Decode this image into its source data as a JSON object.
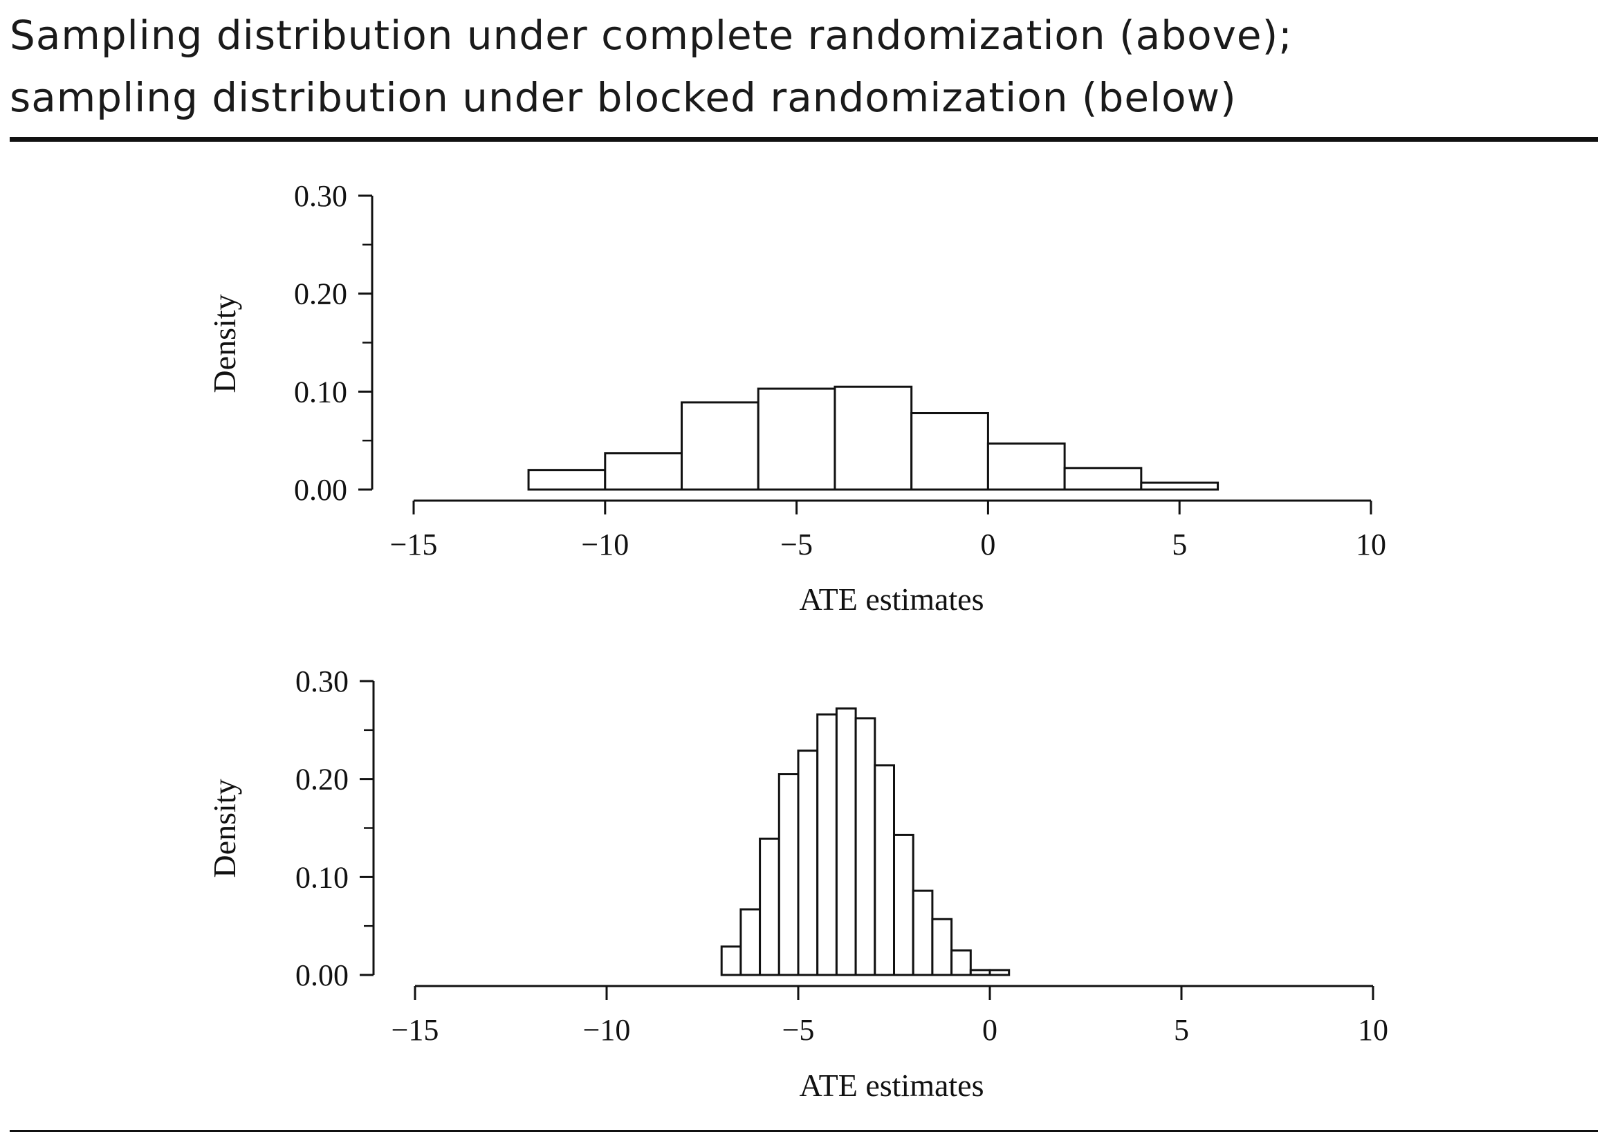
{
  "title_lines": [
    "Sampling distribution under complete randomization (above);",
    "sampling distribution under blocked randomization (below)"
  ],
  "chart_data": [
    {
      "type": "bar",
      "histogram": true,
      "xlabel": "ATE estimates",
      "ylabel": "Density",
      "xlim": [
        -15,
        10
      ],
      "ylim": [
        0,
        0.3
      ],
      "x_ticks": [
        -15,
        -10,
        -5,
        0,
        5,
        10
      ],
      "x_tick_labels": [
        "−15",
        "−10",
        "−5",
        "0",
        "5",
        "10"
      ],
      "y_ticks": [
        0.0,
        0.1,
        0.2,
        0.3
      ],
      "y_tick_labels": [
        "0.00",
        "0.10",
        "0.20",
        "0.30"
      ],
      "y_minor_ticks": [
        0.05,
        0.15,
        0.25
      ],
      "bins": [
        {
          "x0": -12,
          "x1": -10,
          "density": 0.02
        },
        {
          "x0": -10,
          "x1": -8,
          "density": 0.037
        },
        {
          "x0": -8,
          "x1": -6,
          "density": 0.089
        },
        {
          "x0": -6,
          "x1": -4,
          "density": 0.103
        },
        {
          "x0": -4,
          "x1": -2,
          "density": 0.105
        },
        {
          "x0": -2,
          "x1": 0,
          "density": 0.078
        },
        {
          "x0": 0,
          "x1": 2,
          "density": 0.047
        },
        {
          "x0": 2,
          "x1": 4,
          "density": 0.022
        },
        {
          "x0": 4,
          "x1": 6,
          "density": 0.007
        }
      ]
    },
    {
      "type": "bar",
      "histogram": true,
      "xlabel": "ATE estimates",
      "ylabel": "Density",
      "xlim": [
        -15,
        10
      ],
      "ylim": [
        0,
        0.3
      ],
      "x_ticks": [
        -15,
        -10,
        -5,
        0,
        5,
        10
      ],
      "x_tick_labels": [
        "−15",
        "−10",
        "−5",
        "0",
        "5",
        "10"
      ],
      "y_ticks": [
        0.0,
        0.1,
        0.2,
        0.3
      ],
      "y_tick_labels": [
        "0.00",
        "0.10",
        "0.20",
        "0.30"
      ],
      "y_minor_ticks": [
        0.05,
        0.15,
        0.25
      ],
      "bins": [
        {
          "x0": -7.0,
          "x1": -6.5,
          "density": 0.029
        },
        {
          "x0": -6.5,
          "x1": -6.0,
          "density": 0.067
        },
        {
          "x0": -6.0,
          "x1": -5.5,
          "density": 0.139
        },
        {
          "x0": -5.5,
          "x1": -5.0,
          "density": 0.205
        },
        {
          "x0": -5.0,
          "x1": -4.5,
          "density": 0.229
        },
        {
          "x0": -4.5,
          "x1": -4.0,
          "density": 0.266
        },
        {
          "x0": -4.0,
          "x1": -3.5,
          "density": 0.272
        },
        {
          "x0": -3.5,
          "x1": -3.0,
          "density": 0.262
        },
        {
          "x0": -3.0,
          "x1": -2.5,
          "density": 0.214
        },
        {
          "x0": -2.5,
          "x1": -2.0,
          "density": 0.143
        },
        {
          "x0": -2.0,
          "x1": -1.5,
          "density": 0.086
        },
        {
          "x0": -1.5,
          "x1": -1.0,
          "density": 0.057
        },
        {
          "x0": -1.0,
          "x1": -0.5,
          "density": 0.025
        },
        {
          "x0": -0.5,
          "x1": 0.0,
          "density": 0.005
        },
        {
          "x0": 0.0,
          "x1": 0.5,
          "density": 0.005
        }
      ]
    }
  ]
}
